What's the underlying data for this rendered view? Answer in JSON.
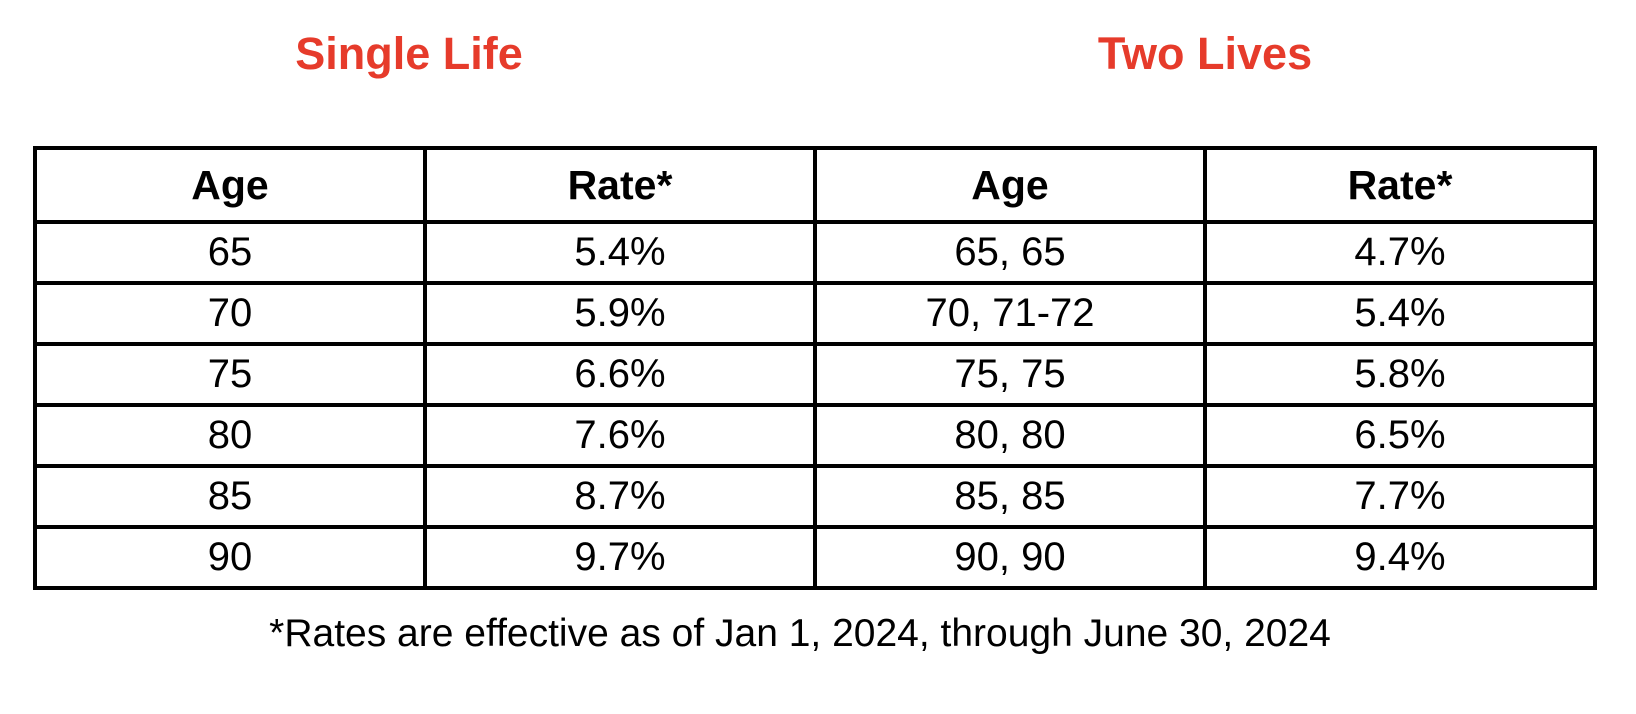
{
  "page": {
    "background": "#ffffff",
    "accent_color": "#e63b2b",
    "text_color": "#000000",
    "border_color": "#000000"
  },
  "titles": {
    "left": "Single Life",
    "right": "Two Lives"
  },
  "table": {
    "headers": [
      "Age",
      "Rate*",
      "Age",
      "Rate*"
    ],
    "rows": [
      [
        "65",
        "5.4%",
        "65, 65",
        "4.7%"
      ],
      [
        "70",
        "5.9%",
        "70, 71-72",
        "5.4%"
      ],
      [
        "75",
        "6.6%",
        "75, 75",
        "5.8%"
      ],
      [
        "80",
        "7.6%",
        "80, 80",
        "6.5%"
      ],
      [
        "85",
        "8.7%",
        "85, 85",
        "7.7%"
      ],
      [
        "90",
        "9.7%",
        "90, 90",
        "9.4%"
      ]
    ]
  },
  "footnote": "*Rates are effective as of Jan 1, 2024, through June 30, 2024",
  "chart_data": {
    "type": "table",
    "sections": [
      {
        "title": "Single Life",
        "columns": [
          "Age",
          "Rate*"
        ],
        "ages": [
          "65",
          "70",
          "75",
          "80",
          "85",
          "90"
        ],
        "rates_percent": [
          5.4,
          5.9,
          6.6,
          7.6,
          8.7,
          9.7
        ]
      },
      {
        "title": "Two Lives",
        "columns": [
          "Age",
          "Rate*"
        ],
        "ages": [
          "65, 65",
          "70, 71-72",
          "75, 75",
          "80, 80",
          "85, 85",
          "90, 90"
        ],
        "rates_percent": [
          4.7,
          5.4,
          5.8,
          6.5,
          7.7,
          9.4
        ]
      }
    ],
    "footnote": "*Rates are effective as of Jan 1, 2024, through June 30, 2024"
  }
}
